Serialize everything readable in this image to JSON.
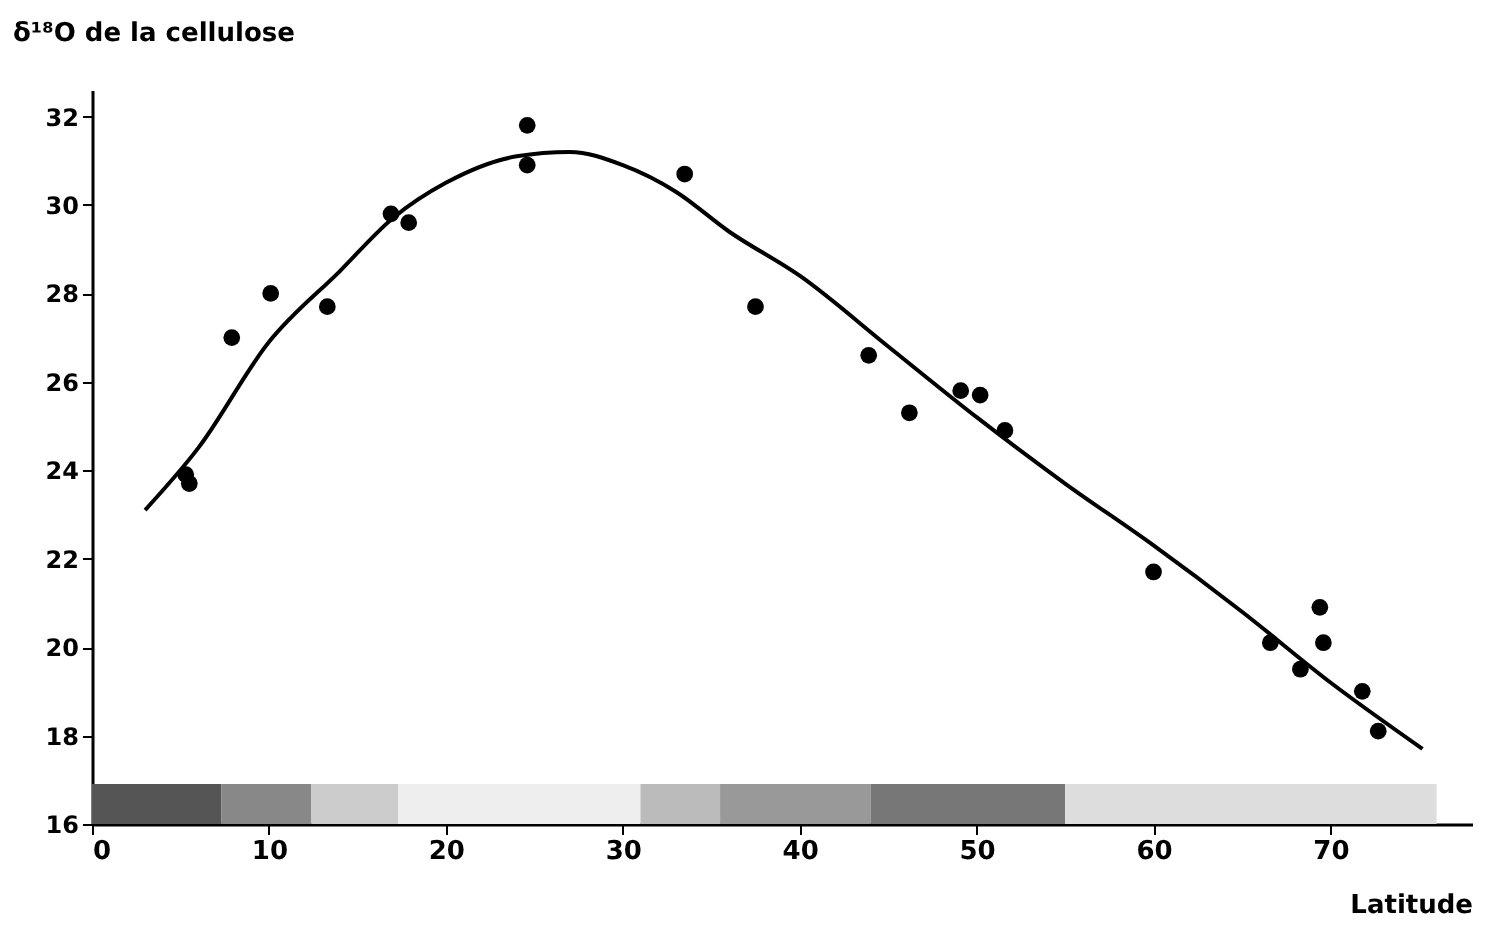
{
  "chart_data": {
    "type": "scatter",
    "xlabel": "Latitude",
    "ylabel": "δ¹⁸O de la cellulose",
    "xlim": [
      0,
      78
    ],
    "xticks": [
      0,
      10,
      20,
      30,
      40,
      50,
      60,
      70
    ],
    "ylim": [
      16,
      32.6
    ],
    "yticks": [
      16,
      18,
      20,
      22,
      24,
      26,
      28,
      30,
      32
    ],
    "grid": false,
    "series": [
      {
        "type": "scatter",
        "color": "#000000",
        "marker": "circle",
        "x": [
          5.3,
          5.5,
          7.9,
          10.1,
          13.3,
          16.9,
          17.9,
          24.6,
          24.6,
          33.5,
          37.5,
          43.9,
          46.2,
          49.1,
          50.2,
          51.6,
          60.0,
          66.6,
          68.3,
          69.4,
          69.6,
          71.8,
          72.7
        ],
        "values": [
          23.9,
          23.7,
          27.0,
          28.0,
          27.7,
          29.8,
          29.6,
          31.8,
          30.9,
          30.7,
          27.7,
          26.6,
          25.3,
          25.8,
          25.7,
          24.9,
          21.7,
          20.1,
          19.5,
          20.9,
          20.1,
          19.0,
          18.1
        ]
      },
      {
        "type": "line",
        "color": "#000000",
        "marker": "none",
        "line_style": "solid",
        "x": [
          3,
          6,
          10,
          14,
          17,
          20,
          24,
          27,
          30,
          33,
          36,
          40,
          45,
          50,
          55,
          60,
          65,
          70,
          75.2
        ],
        "values": [
          23.1,
          24.5,
          26.9,
          28.5,
          29.7,
          30.5,
          31.1,
          31.2,
          30.9,
          30.3,
          29.4,
          28.4,
          26.8,
          25.2,
          23.7,
          22.3,
          20.8,
          19.2,
          17.7
        ]
      }
    ],
    "bands": [
      {
        "axis": "x",
        "from": 0,
        "to": 7.3,
        "color": "#555555"
      },
      {
        "axis": "x",
        "from": 7.3,
        "to": 12.4,
        "color": "#888888"
      },
      {
        "axis": "x",
        "from": 12.4,
        "to": 17.3,
        "color": "#cccccc"
      },
      {
        "axis": "x",
        "from": 17.3,
        "to": 31,
        "color": "#eeeeee"
      },
      {
        "axis": "x",
        "from": 31,
        "to": 35.5,
        "color": "#bbbbbb"
      },
      {
        "axis": "x",
        "from": 35.5,
        "to": 44,
        "color": "#999999"
      },
      {
        "axis": "x",
        "from": 44,
        "to": 55,
        "color": "#777777"
      },
      {
        "axis": "x",
        "from": 55,
        "to": 76,
        "color": "#dddddd"
      }
    ]
  }
}
